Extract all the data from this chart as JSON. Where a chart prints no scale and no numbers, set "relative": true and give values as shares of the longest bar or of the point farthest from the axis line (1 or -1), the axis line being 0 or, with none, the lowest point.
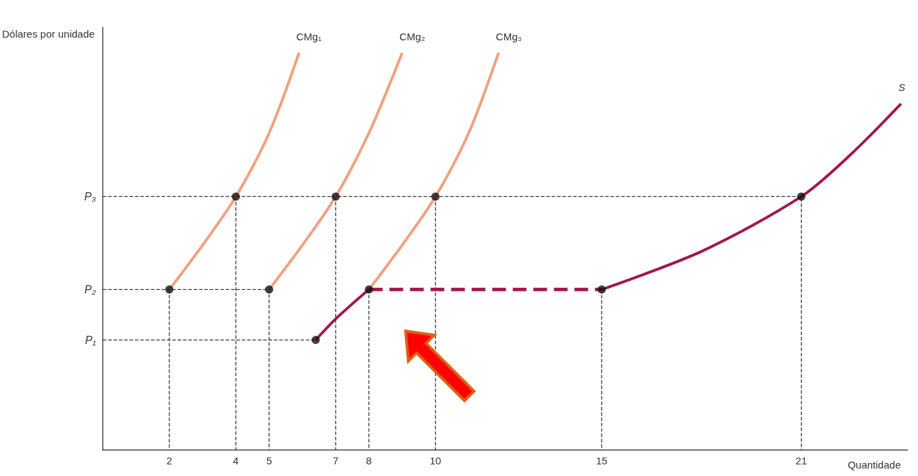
{
  "chart_data": {
    "type": "line",
    "relative": true,
    "xlabel": "Quantidade",
    "ylabel": "Dólares por unidade",
    "xlim": [
      0,
      24.2
    ],
    "xticks": [
      2,
      4,
      5,
      7,
      8,
      10,
      15,
      21
    ],
    "series": [
      {
        "name": "P₃",
        "line_style": "dashed",
        "marker": "none",
        "color": "#333333",
        "x": [
          0,
          21,
          21
        ],
        "values": [
          0.638,
          0.638,
          0
        ]
      },
      {
        "line_style": "dashed",
        "marker": "none",
        "color": "#333333",
        "x": [
          4,
          4
        ],
        "values": [
          0.638,
          0
        ]
      },
      {
        "line_style": "dashed",
        "marker": "none",
        "color": "#333333",
        "x": [
          7,
          7
        ],
        "values": [
          0.638,
          0
        ]
      },
      {
        "line_style": "dashed",
        "marker": "none",
        "color": "#333333",
        "x": [
          10,
          10
        ],
        "values": [
          0.638,
          0
        ]
      },
      {
        "name": "P₂",
        "line_style": "dashed",
        "marker": "none",
        "color": "#333333",
        "x": [
          0,
          5,
          5
        ],
        "values": [
          0.404,
          0.404,
          0
        ]
      },
      {
        "line_style": "dashed",
        "marker": "none",
        "color": "#333333",
        "x": [
          2,
          2
        ],
        "values": [
          0.404,
          0
        ]
      },
      {
        "line_style": "dashed",
        "marker": "none",
        "color": "#333333",
        "x": [
          8,
          8
        ],
        "values": [
          0.404,
          0
        ]
      },
      {
        "line_style": "dashed",
        "marker": "none",
        "color": "#333333",
        "x": [
          15,
          15
        ],
        "values": [
          0.404,
          0
        ]
      },
      {
        "name": "P₁",
        "line_style": "dashed",
        "marker": "none",
        "color": "#333333",
        "x": [
          0,
          6.4
        ],
        "values": [
          0.277,
          0.277
        ]
      },
      {
        "name": "CMg₁",
        "line_style": "solid",
        "marker": "none",
        "color": "#f2a07f",
        "x": [
          2,
          3,
          4,
          5,
          5.9
        ],
        "values": [
          0.404,
          0.516,
          0.638,
          0.798,
          1
        ]
      },
      {
        "name": "CMg₂",
        "line_style": "solid",
        "marker": "none",
        "color": "#f2a07f",
        "x": [
          5,
          6,
          7,
          8,
          9
        ],
        "values": [
          0.404,
          0.516,
          0.638,
          0.798,
          1
        ]
      },
      {
        "name": "CMg₃",
        "line_style": "solid",
        "marker": "none",
        "color": "#f2a07f",
        "x": [
          8,
          9,
          10,
          11,
          11.9
        ],
        "values": [
          0.404,
          0.516,
          0.638,
          0.798,
          1
        ]
      },
      {
        "line_style": "solid",
        "marker": "none",
        "color": "#a3164b",
        "x": [
          6.4,
          7,
          8
        ],
        "values": [
          0.277,
          0.33,
          0.404
        ]
      },
      {
        "line_style": "dashed",
        "marker": "none",
        "color": "#a3164b",
        "x": [
          8,
          15
        ],
        "values": [
          0.404,
          0.404
        ]
      },
      {
        "name": "S",
        "line_style": "solid",
        "marker": "none",
        "color": "#a3164b",
        "x": [
          15,
          18,
          21,
          22.5,
          24
        ],
        "values": [
          0.404,
          0.5,
          0.638,
          0.745,
          0.872
        ]
      },
      {
        "type": "scatter",
        "marker": "circle",
        "color": "#111111",
        "x": [
          2,
          4,
          5,
          7,
          8,
          10,
          15,
          21,
          6.4
        ],
        "values": [
          0.404,
          0.638,
          0.404,
          0.638,
          0.404,
          0.638,
          0.404,
          0.638,
          0.277
        ]
      }
    ]
  }
}
